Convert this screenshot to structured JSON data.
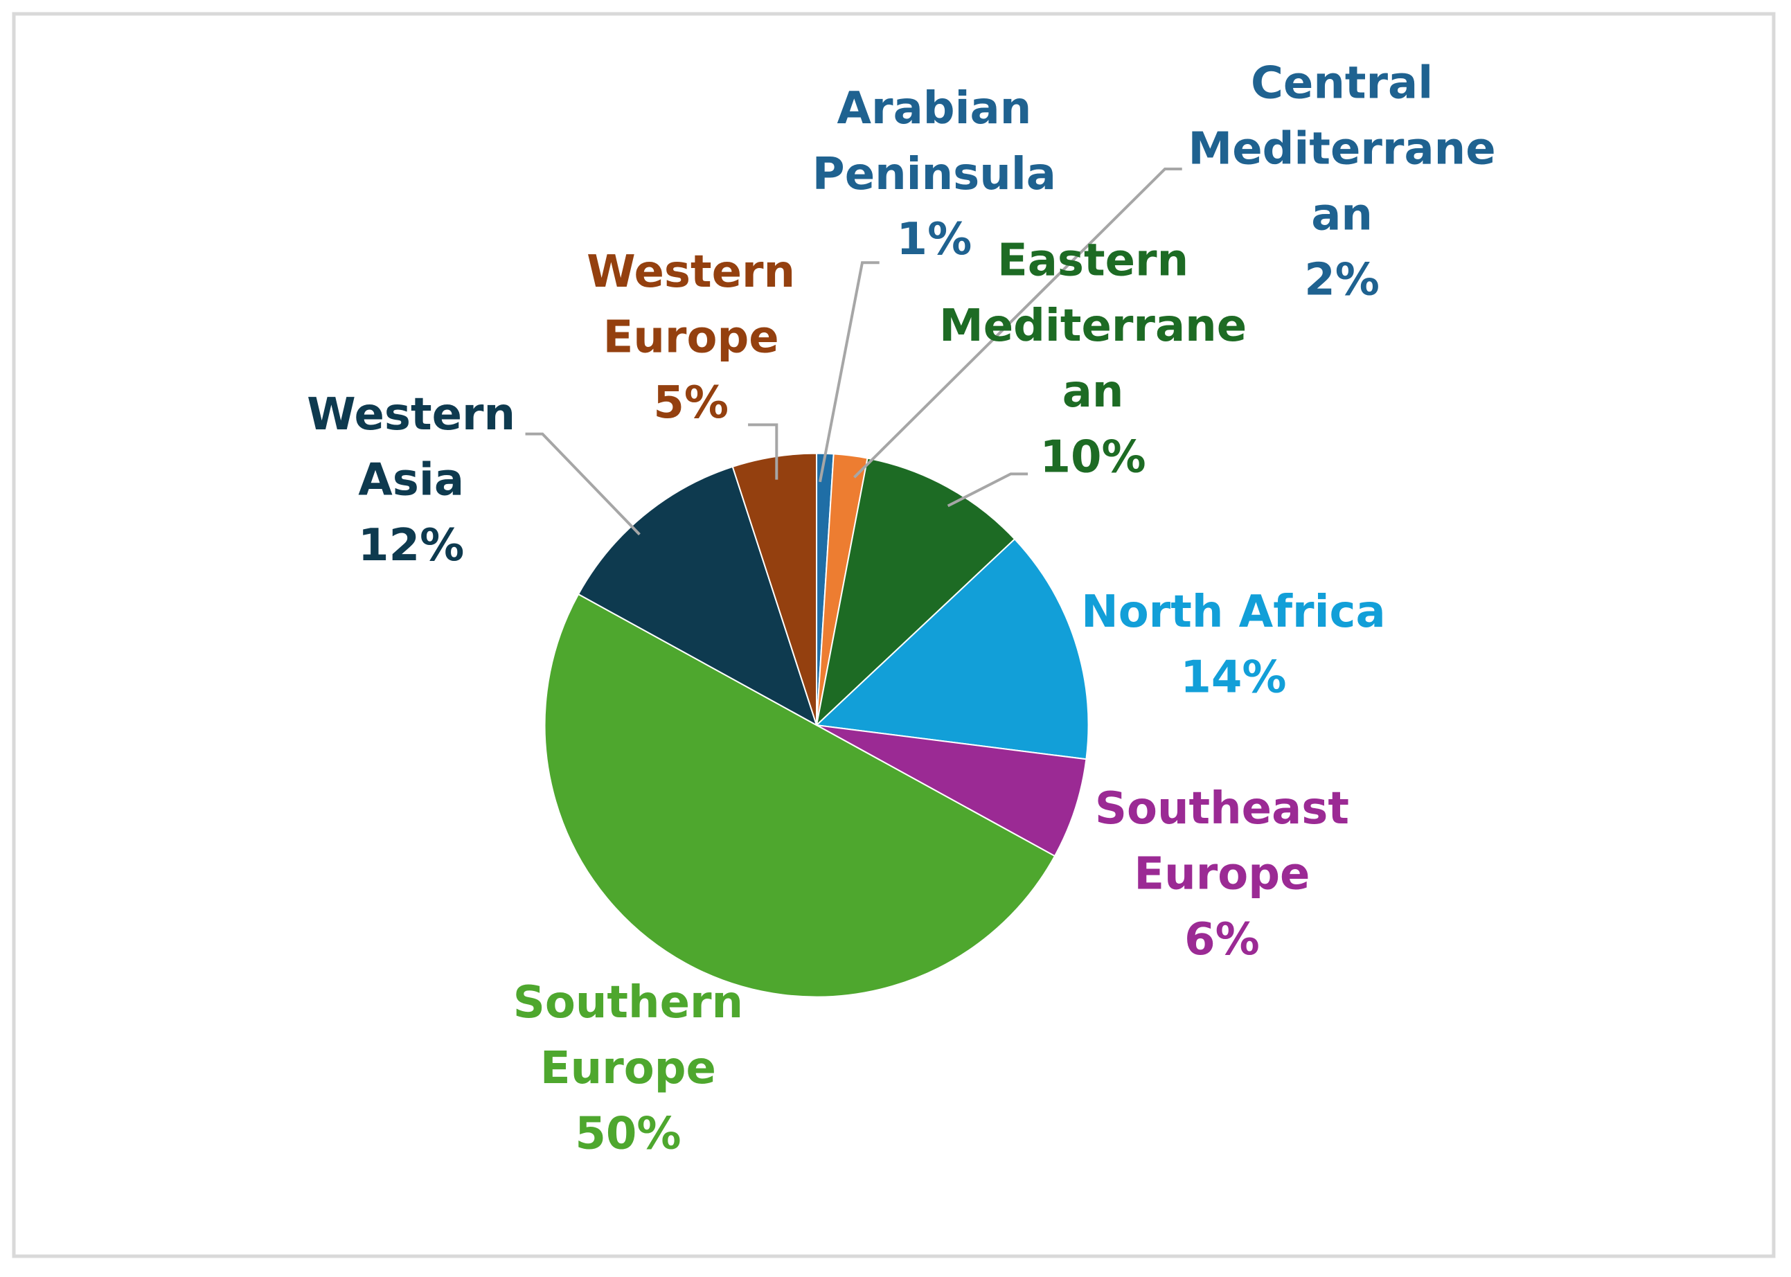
{
  "chart_data": {
    "type": "pie",
    "categories": [
      "Arabian Peninsula",
      "Central Mediterranean",
      "Eastern Mediterranean",
      "North Africa",
      "Southeast Europe",
      "Southern Europe",
      "Western Asia",
      "Western Europe"
    ],
    "values": [
      1,
      2,
      10,
      14,
      6,
      50,
      12,
      5
    ],
    "value_labels": [
      "1%",
      "2%",
      "10%",
      "14%",
      "6%",
      "50%",
      "12%",
      "5%"
    ],
    "colors": [
      "#1f6ea6",
      "#ed7d31",
      "#1d6b24",
      "#129fd8",
      "#9b2a94",
      "#4ea72e",
      "#0e3a4f",
      "#94400f"
    ],
    "label_colors": [
      "#1f6290",
      "#1f6290",
      "#1d6b24",
      "#129fd8",
      "#9b2a94",
      "#4ea72e",
      "#0e3a4f",
      "#94400f"
    ]
  }
}
